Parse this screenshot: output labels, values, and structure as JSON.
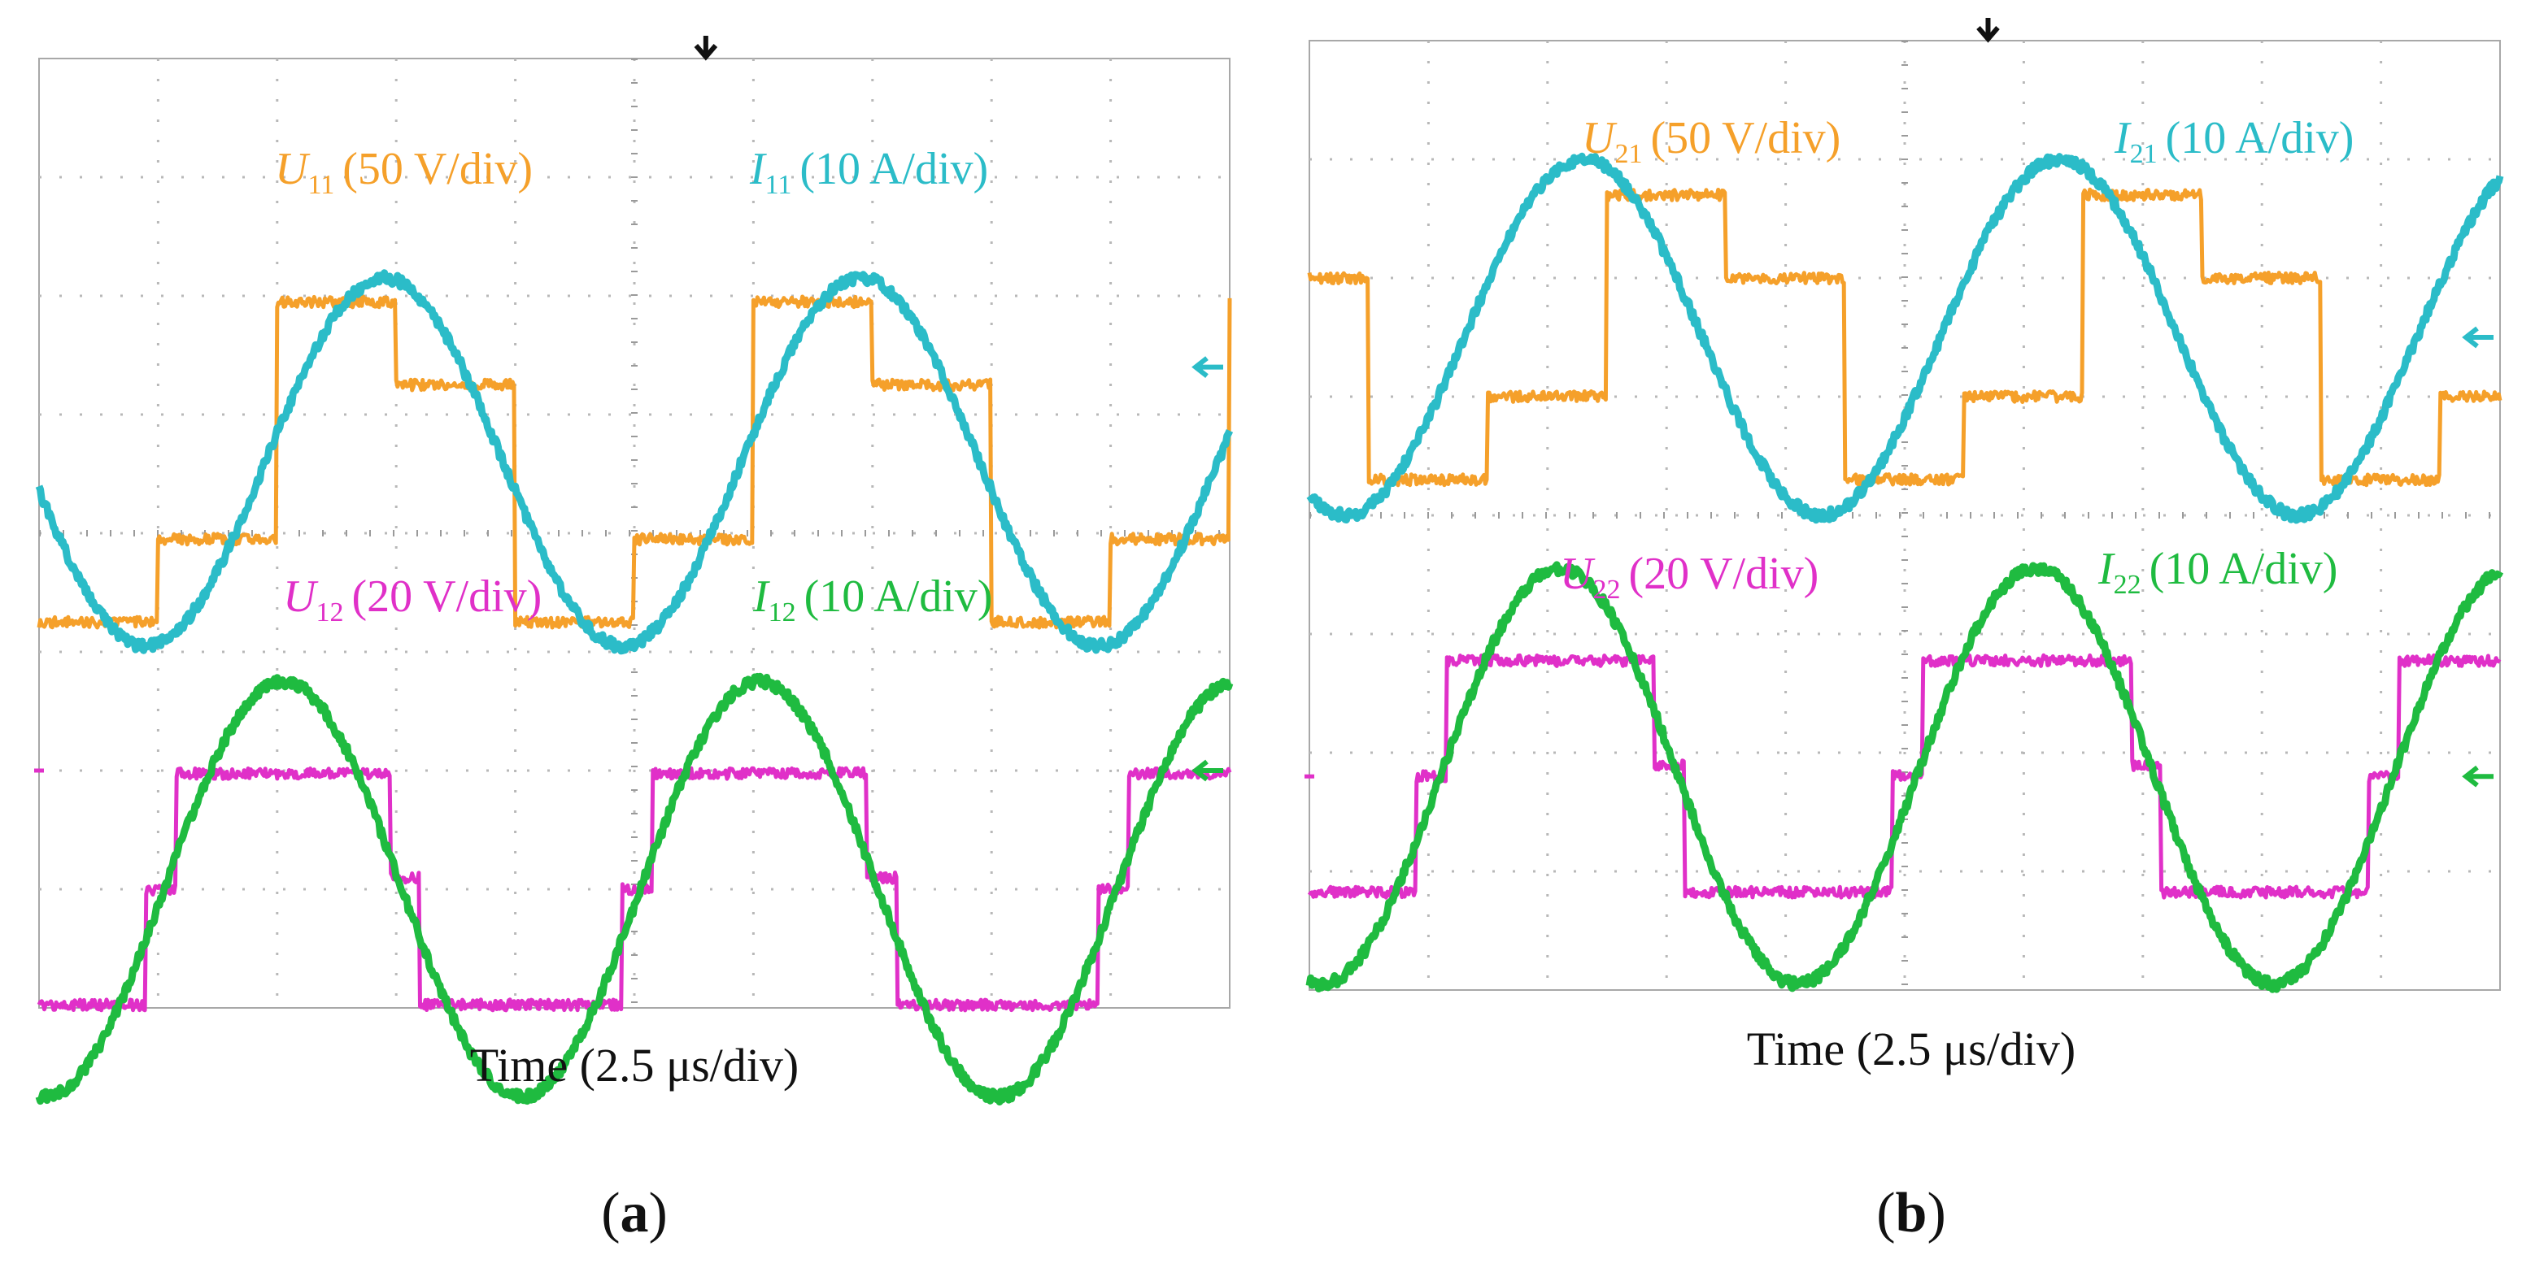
{
  "chart_data": [
    {
      "type": "line",
      "panel_label_open": "(",
      "panel_label_letter": "a",
      "panel_label_close": ")",
      "xlabel": "Time (2.5 μs/div)",
      "grid": "10x8 dotted",
      "x_divisions": 10,
      "y_divisions": 8,
      "series": [
        {
          "name": "U11",
          "symbol": "U",
          "subscript": "11",
          "scale": "(50 V/div)",
          "color": "#f5a02a",
          "kind": "stepped",
          "period_div": 4.0,
          "phase_div": 0.0,
          "mid_div": 4.6,
          "levels_div": [
            0.7,
            1.35
          ]
        },
        {
          "name": "I11",
          "symbol": "I",
          "subscript": "11",
          "scale": "(10 A/div)",
          "color": "#2bbcc8",
          "kind": "sine",
          "period_div": 4.0,
          "peak_time_div": 2.9,
          "mid_div": 4.6,
          "amplitude_div": 1.55
        },
        {
          "name": "U12",
          "symbol": "U",
          "subscript": "12",
          "scale": "(20 V/div)",
          "color": "#e030c8",
          "kind": "square",
          "period_div": 4.0,
          "high_start_div": 1.15,
          "high_end_div": 2.95,
          "step_time_div": 0.9,
          "step_level_div": 0.5,
          "mid_div": 1.0,
          "amplitude_div": 1.95
        },
        {
          "name": "I12",
          "symbol": "I",
          "subscript": "12",
          "scale": "(10 A/div)",
          "color": "#1fbb40",
          "kind": "sine",
          "period_div": 4.0,
          "peak_time_div": 2.05,
          "mid_div": 1.0,
          "amplitude_div": 1.75
        }
      ],
      "markers": {
        "trigger_time_div": 5.6,
        "ref_level_u11_i11_div": 5.4,
        "ref_level_u12_i12_div": 2.0,
        "ref_level_u12_tick_div": 2.0
      }
    },
    {
      "type": "line",
      "panel_label_open": "(",
      "panel_label_letter": "b",
      "panel_label_close": ")",
      "xlabel": "Time (2.5 μs/div)",
      "grid": "10x8 dotted",
      "x_divisions": 10,
      "y_divisions": 8,
      "series": [
        {
          "name": "U21",
          "symbol": "U",
          "subscript": "21",
          "scale": "(50 V/div)",
          "color": "#f5a02a",
          "kind": "stepped",
          "period_div": 4.0,
          "phase_div": 0.5,
          "mid_div": 5.5,
          "levels_div": [
            0.7,
            1.2
          ]
        },
        {
          "name": "I21",
          "symbol": "I",
          "subscript": "21",
          "scale": "(10 A/div)",
          "color": "#2bbcc8",
          "kind": "sine",
          "period_div": 4.0,
          "peak_time_div": 2.3,
          "mid_div": 5.5,
          "amplitude_div": 1.5
        },
        {
          "name": "U22",
          "symbol": "U",
          "subscript": "22",
          "scale": "(20 V/div)",
          "color": "#e030c8",
          "kind": "square",
          "period_div": 4.0,
          "high_start_div": 1.15,
          "high_end_div": 2.9,
          "step_time_div": 0.9,
          "step_level_div": 0.5,
          "mid_div": 1.8,
          "amplitude_div": 1.95
        },
        {
          "name": "I22",
          "symbol": "I",
          "subscript": "22",
          "scale": "(10 A/div)",
          "color": "#1fbb40",
          "kind": "sine",
          "period_div": 4.0,
          "peak_time_div": 2.1,
          "mid_div": 1.8,
          "amplitude_div": 1.75
        }
      ],
      "markers": {
        "trigger_time_div": 5.7,
        "ref_level_u11_i11_div": 5.5,
        "ref_level_u12_i12_div": 1.8,
        "ref_level_u12_tick_div": 1.8
      }
    }
  ]
}
